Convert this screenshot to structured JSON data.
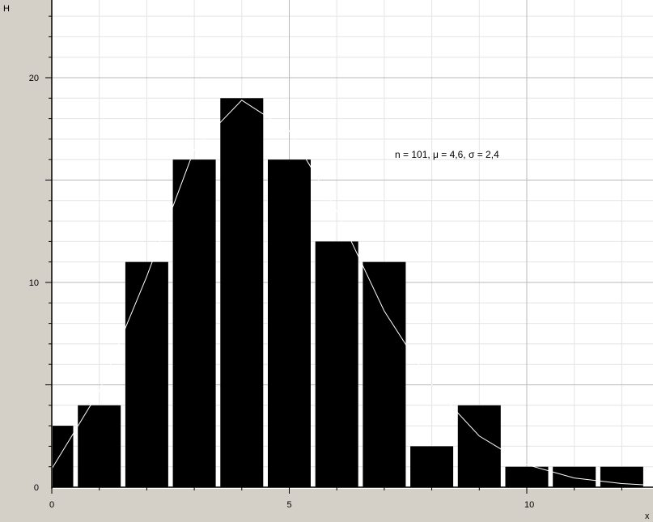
{
  "chart_data": {
    "type": "bar",
    "ylabel": "H",
    "xlabel": "x",
    "xlim": [
      0,
      12.6
    ],
    "ylim": [
      0,
      23.8
    ],
    "grid": true,
    "x_ticks": [
      "0",
      "5",
      "10"
    ],
    "y_ticks": [
      "0",
      "10",
      "20"
    ],
    "annotation": "n = 101,  μ = 4,6,  σ = 2,4",
    "bars": [
      {
        "x": 0,
        "value": 3
      },
      {
        "x": 1,
        "value": 4
      },
      {
        "x": 2,
        "value": 11
      },
      {
        "x": 3,
        "value": 16
      },
      {
        "x": 4,
        "value": 19
      },
      {
        "x": 5,
        "value": 16
      },
      {
        "x": 6,
        "value": 12
      },
      {
        "x": 7,
        "value": 11
      },
      {
        "x": 8,
        "value": 2
      },
      {
        "x": 9,
        "value": 4
      },
      {
        "x": 10,
        "value": 1
      },
      {
        "x": 11,
        "value": 1
      },
      {
        "x": 12,
        "value": 1
      }
    ],
    "curve": {
      "x": [
        0,
        1,
        2,
        3,
        4,
        5,
        6,
        7,
        8,
        9,
        10,
        11,
        12,
        12.6
      ],
      "y": [
        0.9,
        4.7,
        10.3,
        16.5,
        18.9,
        17.4,
        13.5,
        8.6,
        5.0,
        2.5,
        1.1,
        0.45,
        0.18,
        0.1
      ]
    }
  }
}
